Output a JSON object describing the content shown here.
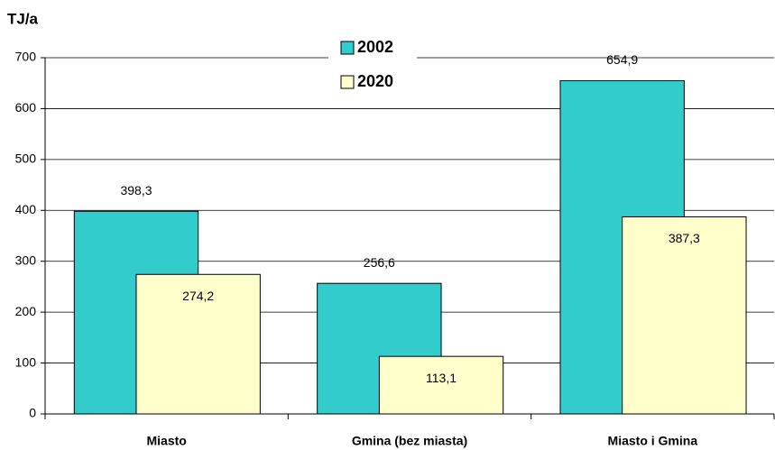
{
  "chart_data": {
    "type": "bar",
    "y_label": "TJ/a",
    "categories": [
      "Miasto",
      "Gmina (bez miasta)",
      "Miasto i Gmina"
    ],
    "series": [
      {
        "name": "2002",
        "color": "#33cccc",
        "values": [
          398.3,
          256.6,
          654.9
        ],
        "value_labels": [
          "398,3",
          "256,6",
          "654,9"
        ]
      },
      {
        "name": "2020",
        "color": "#ffffcc",
        "values": [
          274.2,
          113.1,
          387.3
        ],
        "value_labels": [
          "274,2",
          "113,1",
          "387,3"
        ]
      }
    ],
    "ylim": [
      0,
      700
    ],
    "yticks": [
      0,
      100,
      200,
      300,
      400,
      500,
      600,
      700
    ],
    "grid": true
  }
}
